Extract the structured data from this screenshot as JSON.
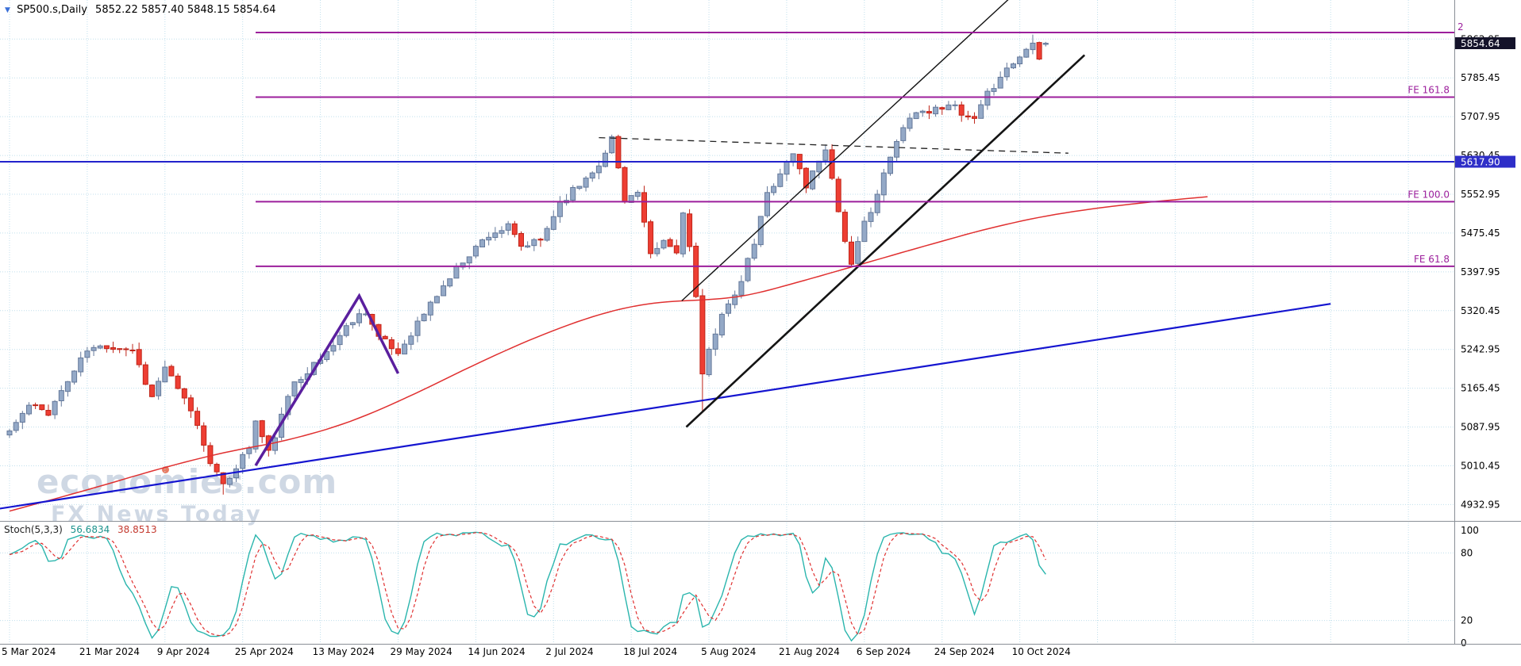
{
  "header": {
    "symbol_timeframe": "SP500.s,Daily",
    "ohlc_text": "5852.22 5857.40 5848.15 5854.64"
  },
  "watermark": {
    "line1": "economies.com",
    "line2": "FX News Today"
  },
  "colors": {
    "background": "#ffffff",
    "grid": "#c0dfec",
    "separator": "#8a8f96",
    "axis_text": "#000000",
    "bull_fill": "#94a9c7",
    "bull_border": "#64789a",
    "bear_fill": "#ee3e33",
    "bear_border": "#bf2418",
    "fib_line": "#9c1f9c",
    "hline_blue": "#2222cc",
    "ma_red": "#e03030",
    "stoch_k": "#2ab5ad",
    "stoch_d": "#e03030",
    "price_box_current_bg": "#14132a",
    "price_box_current_text": "#ffffff",
    "price_box_line_bg": "#2e2ec8",
    "price_box_line_text": "#ffffff",
    "watermark": "rgba(140,162,190,0.42)",
    "watermark_dot": "rgba(224,82,48,0.75)",
    "marker_icon": "#3a6fd8",
    "stoch_value_k": "#1d948d",
    "stoch_value_d": "#c43a2f"
  },
  "chart_data": {
    "type": "candlestick",
    "symbol": "SP500.s",
    "timeframe": "Daily",
    "last_candle": {
      "open": 5852.22,
      "high": 5857.4,
      "low": 5848.15,
      "close": 5854.64
    },
    "n_candles": 161,
    "candles_per_tick": 12,
    "x_tick_labels": [
      "5 Mar 2024",
      "21 Mar 2024",
      "9 Apr 2024",
      "25 Apr 2024",
      "13 May 2024",
      "29 May 2024",
      "14 Jun 2024",
      "2 Jul 2024",
      "18 Jul 2024",
      "5 Aug 2024",
      "21 Aug 2024",
      "6 Sep 2024",
      "24 Sep 2024",
      "10 Oct 2024"
    ],
    "price_axis_labels": [
      "5862.95",
      "5785.45",
      "5707.95",
      "5630.45",
      "5552.95",
      "5475.45",
      "5397.95",
      "5320.45",
      "5242.95",
      "5165.45",
      "5087.95",
      "5010.45",
      "4932.95"
    ],
    "ylim": [
      4904,
      5941
    ],
    "close_waypoints": [
      [
        0,
        5080
      ],
      [
        3,
        5130
      ],
      [
        6,
        5118
      ],
      [
        12,
        5241
      ],
      [
        15,
        5250
      ],
      [
        19,
        5243
      ],
      [
        22,
        5147
      ],
      [
        24,
        5209
      ],
      [
        26,
        5160
      ],
      [
        28,
        5123
      ],
      [
        31,
        5022
      ],
      [
        33,
        4967
      ],
      [
        35,
        5010
      ],
      [
        37,
        5048
      ],
      [
        38,
        5099
      ],
      [
        40,
        5036
      ],
      [
        44,
        5180
      ],
      [
        48,
        5222
      ],
      [
        53,
        5303
      ],
      [
        55,
        5321
      ],
      [
        57,
        5267
      ],
      [
        60,
        5235
      ],
      [
        62,
        5277
      ],
      [
        66,
        5352
      ],
      [
        70,
        5421
      ],
      [
        74,
        5473
      ],
      [
        77,
        5487
      ],
      [
        79,
        5447
      ],
      [
        82,
        5460
      ],
      [
        85,
        5537
      ],
      [
        88,
        5572
      ],
      [
        92,
        5631
      ],
      [
        93,
        5667
      ],
      [
        95,
        5544
      ],
      [
        97,
        5555
      ],
      [
        99,
        5427
      ],
      [
        101,
        5459
      ],
      [
        103,
        5436
      ],
      [
        104,
        5522
      ],
      [
        105,
        5446
      ],
      [
        106,
        5346
      ],
      [
        107,
        5186
      ],
      [
        108,
        5240
      ],
      [
        110,
        5319
      ],
      [
        112,
        5344
      ],
      [
        115,
        5455
      ],
      [
        117,
        5554
      ],
      [
        119,
        5597
      ],
      [
        121,
        5634
      ],
      [
        123,
        5570
      ],
      [
        126,
        5648
      ],
      [
        128,
        5520
      ],
      [
        130,
        5408
      ],
      [
        132,
        5495
      ],
      [
        134,
        5554
      ],
      [
        136,
        5626
      ],
      [
        139,
        5713
      ],
      [
        141,
        5719
      ],
      [
        143,
        5722
      ],
      [
        145,
        5738
      ],
      [
        147,
        5709
      ],
      [
        149,
        5699
      ],
      [
        151,
        5751
      ],
      [
        153,
        5792
      ],
      [
        155,
        5815
      ],
      [
        157,
        5842
      ],
      [
        158,
        5862
      ],
      [
        159,
        5830
      ],
      [
        160,
        5854.64
      ]
    ],
    "high_overrides": {
      "93": 5672,
      "158": 5872
    },
    "low_overrides": {
      "33": 4953,
      "107": 5119
    },
    "noise": {
      "seed": 11,
      "close_amp": 8,
      "wick_amp": 14,
      "gap_amp": 4
    },
    "fib_extension": {
      "start_index": 38,
      "levels": [
        {
          "label": "2",
          "price": 5876,
          "label_side": "right"
        },
        {
          "label": "FE 161.8",
          "price": 5747,
          "label_side": "left"
        },
        {
          "label": "FE 100.0",
          "price": 5538,
          "label_side": "left"
        },
        {
          "label": "FE 61.8",
          "price": 5409,
          "label_side": "left"
        }
      ]
    },
    "horizontal_line": {
      "price": 5617.9,
      "axis_label": "5617.90"
    },
    "current_price": {
      "value": 5854.64,
      "axis_label": "5854.64"
    },
    "trendlines": [
      {
        "name": "long-term-support-trendline",
        "color": "#1515d0",
        "width": 2.2,
        "dash": "",
        "points": [
          [
            -2,
            4924
          ],
          [
            204,
            5334
          ]
        ]
      },
      {
        "name": "channel-lower-trendline",
        "color": "#141414",
        "width": 2.6,
        "dash": "",
        "points": [
          [
            104.5,
            5088
          ],
          [
            166,
            5831
          ]
        ]
      },
      {
        "name": "channel-upper-trendline",
        "color": "#141414",
        "width": 1.4,
        "dash": "",
        "points": [
          [
            103.8,
            5340
          ],
          [
            155.4,
            5956
          ]
        ]
      },
      {
        "name": "resistance-dashed-line",
        "color": "#222222",
        "width": 1.3,
        "dash": "8 6",
        "points": [
          [
            91,
            5666
          ],
          [
            163.5,
            5635
          ]
        ]
      },
      {
        "name": "wave-count-zigzag",
        "color": "#5a1f9e",
        "width": 3.5,
        "dash": "",
        "points": [
          [
            38,
            5011
          ],
          [
            54,
            5350
          ],
          [
            60,
            5195
          ]
        ]
      }
    ],
    "ma_line": {
      "waypoints": [
        [
          0,
          4920
        ],
        [
          12,
          4962
        ],
        [
          24,
          5008
        ],
        [
          34,
          5040
        ],
        [
          42,
          5058
        ],
        [
          52,
          5094
        ],
        [
          62,
          5150
        ],
        [
          72,
          5214
        ],
        [
          82,
          5272
        ],
        [
          92,
          5318
        ],
        [
          100,
          5338
        ],
        [
          108,
          5342
        ],
        [
          114,
          5350
        ],
        [
          122,
          5378
        ],
        [
          132,
          5415
        ],
        [
          142,
          5452
        ],
        [
          152,
          5488
        ],
        [
          162,
          5515
        ],
        [
          174,
          5535
        ],
        [
          185,
          5548
        ]
      ]
    },
    "stochastic": {
      "name": "Stoch(5,3,3)",
      "value_k": "56.6834",
      "value_d": "38.8513",
      "k_period": 5,
      "slowing": 3,
      "d_period": 3,
      "level_lines": [
        80,
        20
      ],
      "scale_labels": [
        "100",
        "80",
        "20",
        "0"
      ]
    }
  }
}
